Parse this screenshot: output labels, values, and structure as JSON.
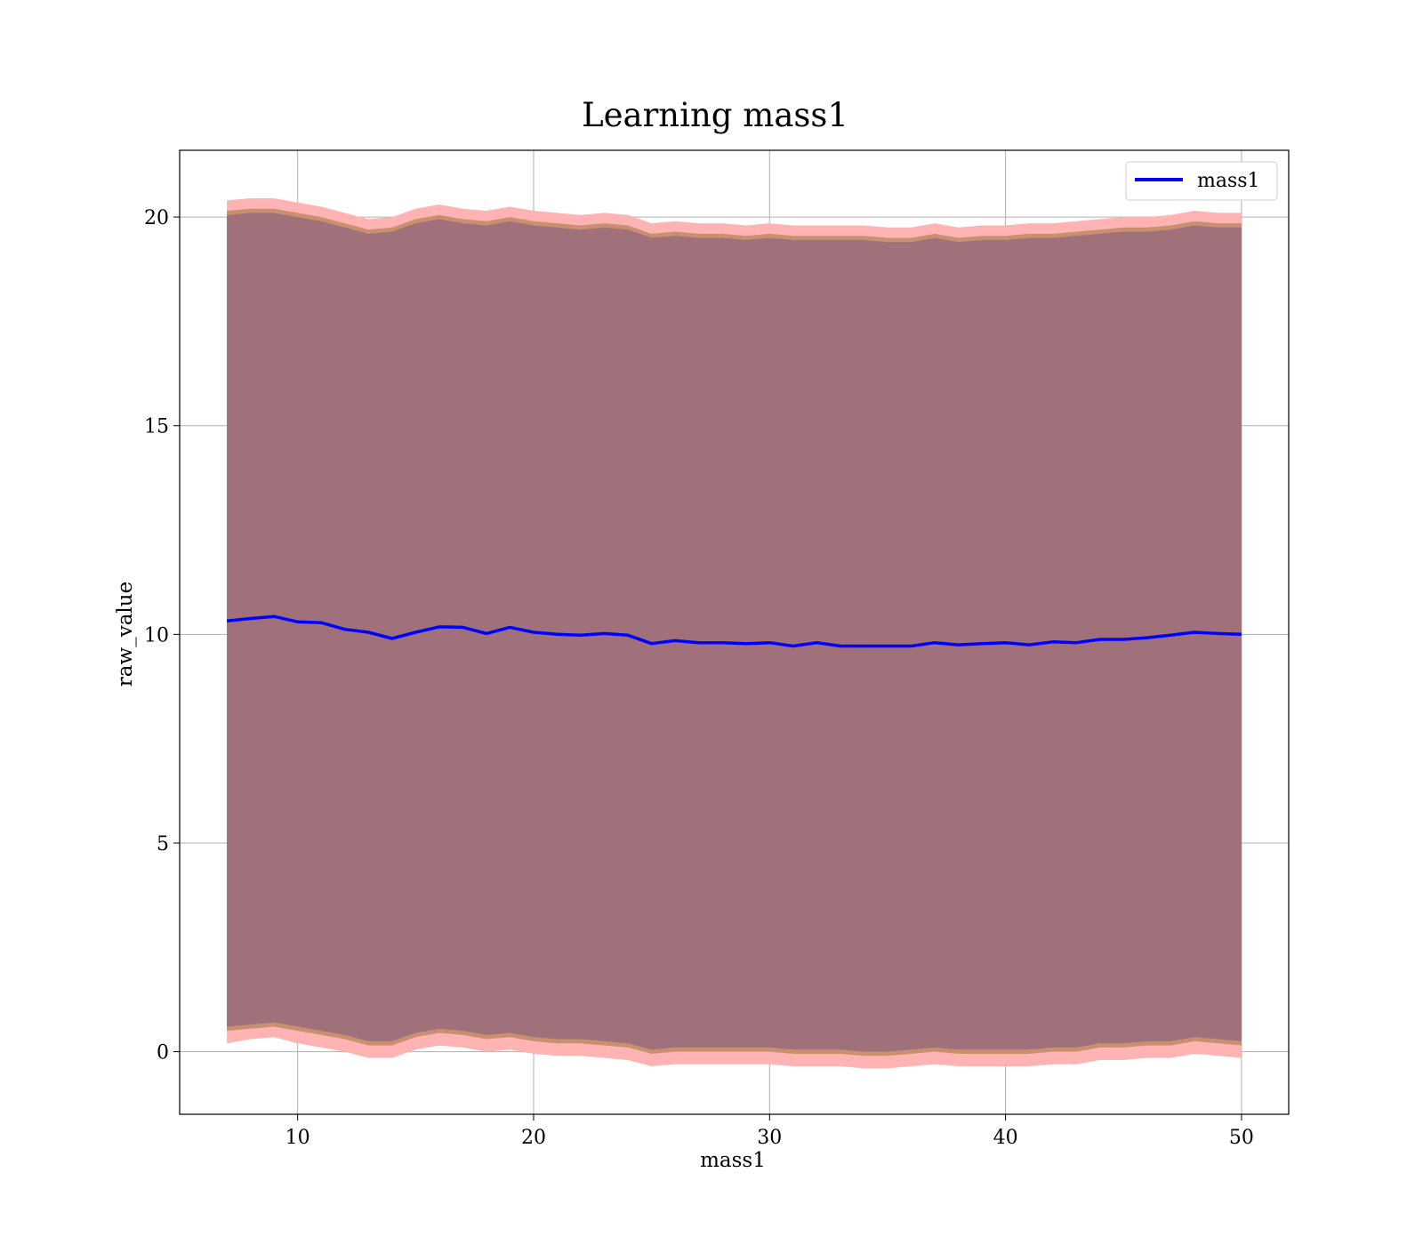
{
  "chart_data": {
    "type": "line",
    "title": "Learning mass1",
    "xlabel": "mass1",
    "ylabel": "raw_value",
    "xlim": [
      5,
      52
    ],
    "ylim": [
      -1.5,
      21.6
    ],
    "xticks": [
      10,
      20,
      30,
      40,
      50
    ],
    "yticks": [
      0,
      5,
      10,
      15,
      20
    ],
    "grid": true,
    "legend": {
      "position": "top-right",
      "entries": [
        "mass1"
      ]
    },
    "colors": {
      "line": "#0000ff",
      "outer_band": "#ffb3b3",
      "middle_band": "#c99070",
      "inner_band": "#a0717a"
    },
    "x": [
      7,
      8,
      9,
      10,
      11,
      12,
      13,
      14,
      15,
      16,
      17,
      18,
      19,
      20,
      21,
      22,
      23,
      24,
      25,
      26,
      27,
      28,
      29,
      30,
      31,
      32,
      33,
      34,
      35,
      36,
      37,
      38,
      39,
      40,
      41,
      42,
      43,
      44,
      45,
      46,
      47,
      48,
      49,
      50
    ],
    "series": [
      {
        "name": "mass1",
        "values": [
          10.32,
          10.38,
          10.43,
          10.3,
          10.28,
          10.12,
          10.05,
          9.9,
          10.05,
          10.18,
          10.17,
          10.02,
          10.17,
          10.05,
          10.0,
          9.98,
          10.02,
          9.98,
          9.78,
          9.85,
          9.8,
          9.8,
          9.78,
          9.8,
          9.72,
          9.8,
          9.72,
          9.72,
          9.72,
          9.72,
          9.8,
          9.75,
          9.78,
          9.8,
          9.75,
          9.82,
          9.8,
          9.88,
          9.88,
          9.92,
          9.98,
          10.05,
          10.02,
          10.0
        ]
      }
    ],
    "bands": [
      {
        "lower": [
          0.2,
          0.3,
          0.35,
          0.2,
          0.1,
          0.0,
          -0.15,
          -0.15,
          0.05,
          0.15,
          0.1,
          0.0,
          0.05,
          -0.05,
          -0.1,
          -0.1,
          -0.15,
          -0.2,
          -0.35,
          -0.3,
          -0.3,
          -0.3,
          -0.3,
          -0.3,
          -0.35,
          -0.35,
          -0.35,
          -0.4,
          -0.4,
          -0.35,
          -0.3,
          -0.35,
          -0.35,
          -0.35,
          -0.35,
          -0.3,
          -0.3,
          -0.2,
          -0.2,
          -0.15,
          -0.15,
          -0.05,
          -0.1,
          -0.15
        ],
        "upper": [
          20.4,
          20.45,
          20.45,
          20.35,
          20.25,
          20.1,
          19.95,
          20.0,
          20.2,
          20.3,
          20.2,
          20.15,
          20.25,
          20.15,
          20.1,
          20.05,
          20.1,
          20.05,
          19.85,
          19.9,
          19.85,
          19.85,
          19.8,
          19.85,
          19.8,
          19.8,
          19.8,
          19.8,
          19.75,
          19.75,
          19.85,
          19.75,
          19.8,
          19.8,
          19.85,
          19.85,
          19.9,
          19.95,
          20.0,
          20.0,
          20.05,
          20.15,
          20.1,
          20.1
        ]
      },
      {
        "lower": [
          0.5,
          0.55,
          0.6,
          0.5,
          0.4,
          0.3,
          0.15,
          0.15,
          0.35,
          0.45,
          0.4,
          0.3,
          0.35,
          0.25,
          0.2,
          0.2,
          0.15,
          0.1,
          -0.05,
          0.0,
          0.0,
          0.0,
          0.0,
          0.0,
          -0.05,
          -0.05,
          -0.05,
          -0.1,
          -0.1,
          -0.05,
          0.0,
          -0.05,
          -0.05,
          -0.05,
          -0.05,
          0.0,
          0.0,
          0.1,
          0.1,
          0.15,
          0.15,
          0.25,
          0.2,
          0.15
        ],
        "upper": [
          20.15,
          20.2,
          20.2,
          20.1,
          20.0,
          19.85,
          19.7,
          19.75,
          19.95,
          20.05,
          19.95,
          19.9,
          20.0,
          19.9,
          19.85,
          19.8,
          19.85,
          19.8,
          19.6,
          19.65,
          19.6,
          19.6,
          19.55,
          19.6,
          19.55,
          19.55,
          19.55,
          19.55,
          19.5,
          19.5,
          19.6,
          19.5,
          19.55,
          19.55,
          19.6,
          19.6,
          19.65,
          19.7,
          19.75,
          19.75,
          19.8,
          19.9,
          19.85,
          19.85
        ]
      },
      {
        "lower": [
          0.6,
          0.65,
          0.7,
          0.6,
          0.5,
          0.4,
          0.25,
          0.25,
          0.45,
          0.55,
          0.5,
          0.4,
          0.45,
          0.35,
          0.3,
          0.3,
          0.25,
          0.2,
          0.05,
          0.1,
          0.1,
          0.1,
          0.1,
          0.1,
          0.05,
          0.05,
          0.05,
          0.0,
          0.0,
          0.05,
          0.1,
          0.05,
          0.05,
          0.05,
          0.05,
          0.1,
          0.1,
          0.2,
          0.2,
          0.25,
          0.25,
          0.35,
          0.3,
          0.25
        ],
        "upper": [
          20.05,
          20.1,
          20.1,
          20.0,
          19.9,
          19.75,
          19.6,
          19.65,
          19.85,
          19.95,
          19.85,
          19.8,
          19.9,
          19.8,
          19.75,
          19.7,
          19.75,
          19.7,
          19.5,
          19.55,
          19.5,
          19.5,
          19.45,
          19.5,
          19.45,
          19.45,
          19.45,
          19.45,
          19.4,
          19.4,
          19.5,
          19.4,
          19.45,
          19.45,
          19.5,
          19.5,
          19.55,
          19.6,
          19.65,
          19.65,
          19.7,
          19.8,
          19.75,
          19.75
        ]
      }
    ]
  }
}
